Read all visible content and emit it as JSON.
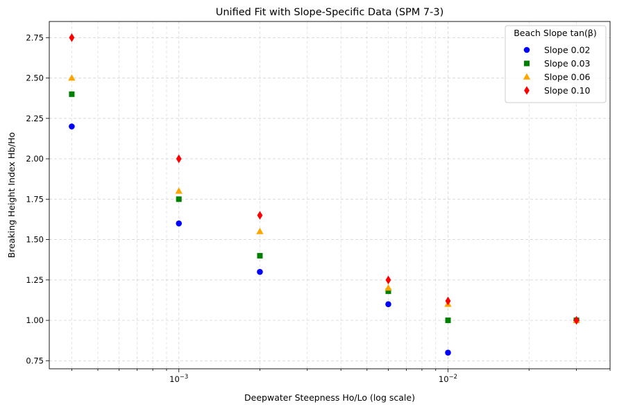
{
  "chart_data": {
    "type": "scatter",
    "title": "Unified Fit with Slope-Specific Data (SPM 7-3)",
    "xlabel": "Deepwater Steepness Ho/Lo (log scale)",
    "ylabel": "Breaking Height Index Hb/Ho",
    "xscale": "log",
    "xlim": [
      0.00033,
      0.04
    ],
    "ylim": [
      0.7,
      2.85
    ],
    "grid": true,
    "legend_title": "Beach Slope tan(β)",
    "legend_position": "top-right",
    "x_major_ticks": [
      {
        "value": 0.001,
        "base": "10",
        "exp": "−3"
      },
      {
        "value": 0.01,
        "base": "10",
        "exp": "−2"
      }
    ],
    "y_ticks": [
      {
        "value": 0.75,
        "label": "0.75"
      },
      {
        "value": 1.0,
        "label": "1.00"
      },
      {
        "value": 1.25,
        "label": "1.25"
      },
      {
        "value": 1.5,
        "label": "1.50"
      },
      {
        "value": 1.75,
        "label": "1.75"
      },
      {
        "value": 2.0,
        "label": "2.00"
      },
      {
        "value": 2.25,
        "label": "2.25"
      },
      {
        "value": 2.5,
        "label": "2.50"
      },
      {
        "value": 2.75,
        "label": "2.75"
      }
    ],
    "x": [
      0.0004,
      0.001,
      0.002,
      0.006,
      0.01,
      0.03
    ],
    "series": [
      {
        "name": "Slope 0.02",
        "color": "#0000ff",
        "marker": "circle",
        "values": [
          2.2,
          1.6,
          1.3,
          1.1,
          0.8,
          1.0
        ]
      },
      {
        "name": "Slope 0.03",
        "color": "#008000",
        "marker": "square",
        "values": [
          2.4,
          1.75,
          1.4,
          1.18,
          1.0,
          1.0
        ]
      },
      {
        "name": "Slope 0.06",
        "color": "#ffa500",
        "marker": "triangle",
        "values": [
          2.5,
          1.8,
          1.55,
          1.2,
          1.1,
          1.0
        ]
      },
      {
        "name": "Slope 0.10",
        "color": "#ff0000",
        "marker": "diamond",
        "values": [
          2.75,
          2.0,
          1.65,
          1.25,
          1.12,
          1.0
        ]
      }
    ]
  }
}
